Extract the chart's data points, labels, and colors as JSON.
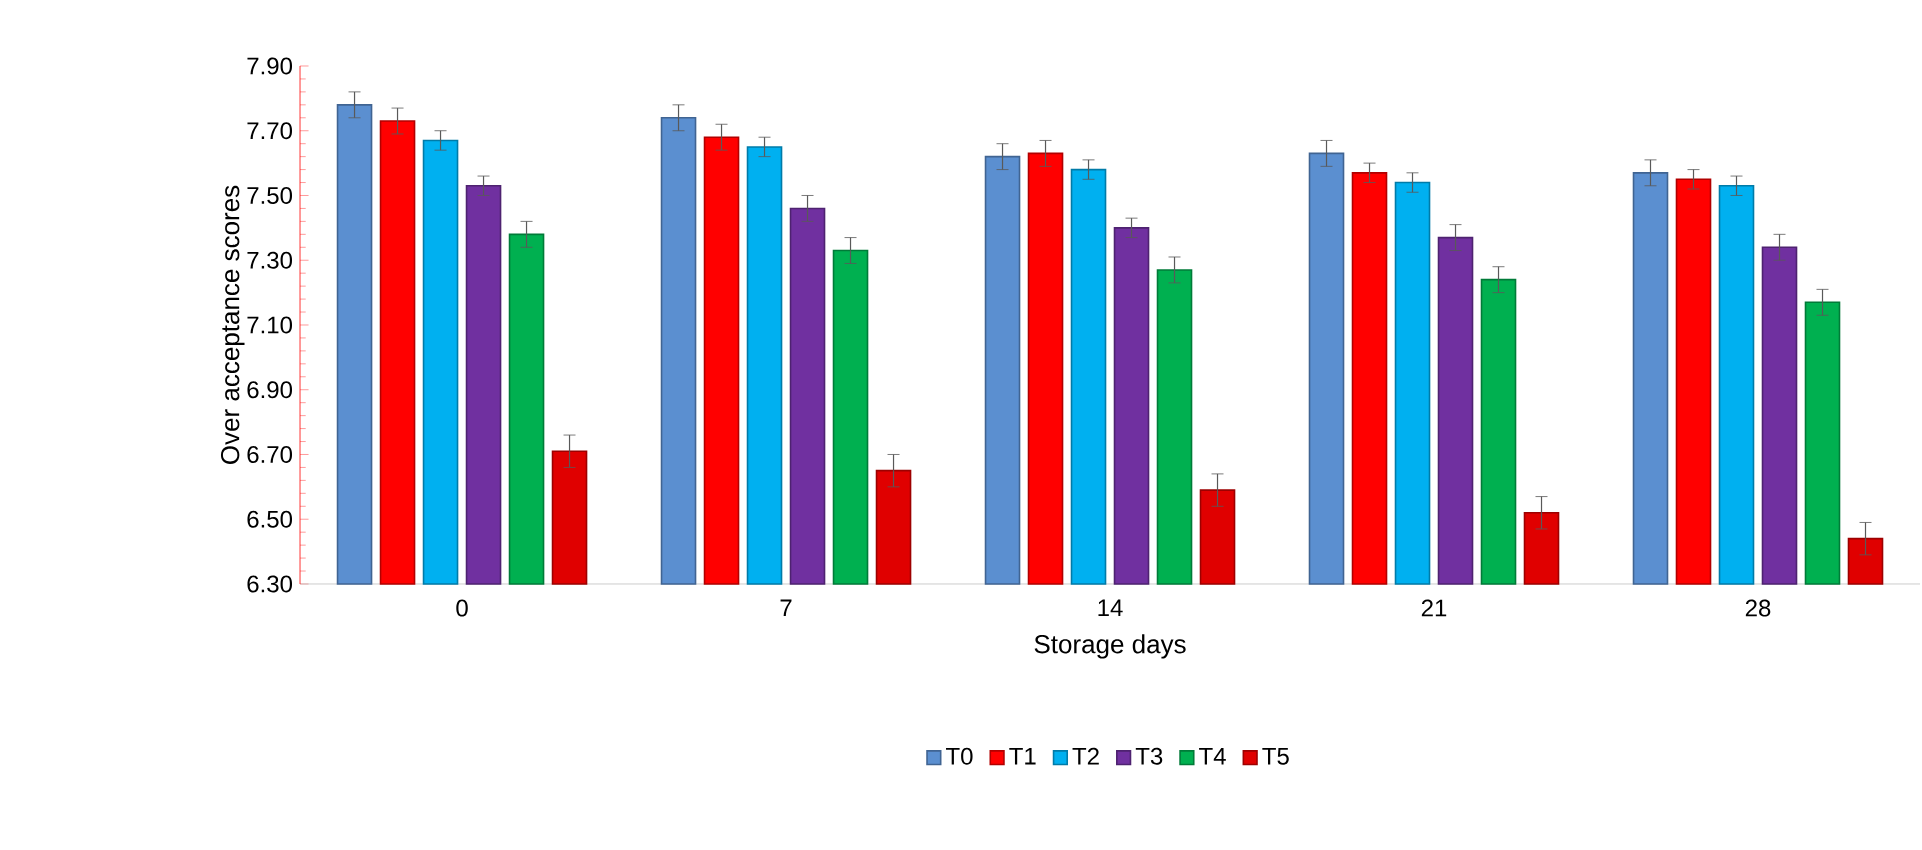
{
  "chart_data": {
    "type": "bar",
    "xlabel": "Storage days",
    "ylabel": "Over acceptance scores",
    "categories": [
      "0",
      "7",
      "14",
      "21",
      "28"
    ],
    "series": [
      {
        "name": "T0",
        "color": "#5b8fd0",
        "values": [
          7.78,
          7.74,
          7.62,
          7.63,
          7.57
        ],
        "errors": [
          0.04,
          0.04,
          0.04,
          0.04,
          0.04
        ]
      },
      {
        "name": "T1",
        "color": "#ff0000",
        "values": [
          7.73,
          7.68,
          7.63,
          7.57,
          7.55
        ],
        "errors": [
          0.04,
          0.04,
          0.04,
          0.03,
          0.03
        ]
      },
      {
        "name": "T2",
        "color": "#00b0f0",
        "values": [
          7.67,
          7.65,
          7.58,
          7.54,
          7.53
        ],
        "errors": [
          0.03,
          0.03,
          0.03,
          0.03,
          0.03
        ]
      },
      {
        "name": "T3",
        "color": "#7030a0",
        "values": [
          7.53,
          7.46,
          7.4,
          7.37,
          7.34
        ],
        "errors": [
          0.03,
          0.04,
          0.03,
          0.04,
          0.04
        ]
      },
      {
        "name": "T4",
        "color": "#00b050",
        "values": [
          7.38,
          7.33,
          7.27,
          7.24,
          7.17
        ],
        "errors": [
          0.04,
          0.04,
          0.04,
          0.04,
          0.04
        ]
      },
      {
        "name": "T5",
        "color": "#e00000",
        "values": [
          6.71,
          6.65,
          6.59,
          6.52,
          6.44
        ],
        "errors": [
          0.05,
          0.05,
          0.05,
          0.05,
          0.05
        ]
      }
    ],
    "ylim": [
      6.3,
      7.9
    ],
    "yticks": [
      {
        "value": 6.3,
        "label": "6.30"
      },
      {
        "value": 6.5,
        "label": "6.50"
      },
      {
        "value": 6.7,
        "label": "6.70"
      },
      {
        "value": 6.9,
        "label": "6.90"
      },
      {
        "value": 7.1,
        "label": "7.10"
      },
      {
        "value": 7.3,
        "label": "7.30"
      },
      {
        "value": 7.5,
        "label": "7.50"
      },
      {
        "value": 7.7,
        "label": "7.70"
      },
      {
        "value": 7.9,
        "label": "7.90"
      }
    ],
    "legend": "bottom",
    "grid": false
  }
}
